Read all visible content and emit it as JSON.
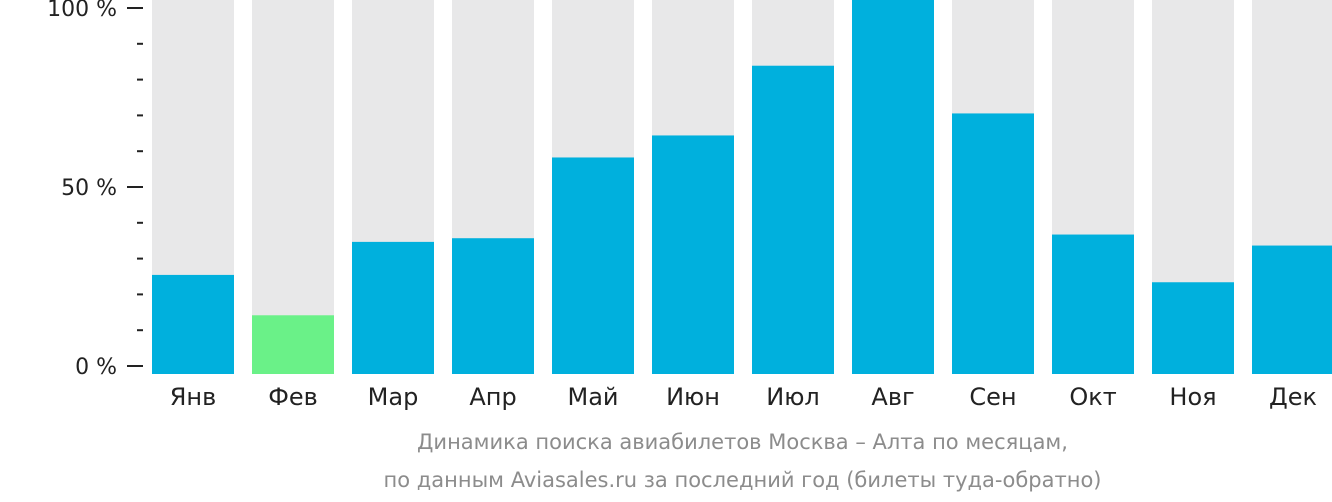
{
  "chart_data": {
    "type": "bar",
    "categories": [
      "Янв",
      "Фев",
      "Мар",
      "Апр",
      "Май",
      "Июн",
      "Июл",
      "Авг",
      "Сен",
      "Окт",
      "Ноя",
      "Дек"
    ],
    "values": [
      27,
      16,
      36,
      37,
      59,
      65,
      84,
      100,
      71,
      38,
      25,
      35
    ],
    "ylim": [
      0,
      100
    ],
    "yticks": [
      "0 %",
      "50 %",
      "100 %"
    ],
    "highlight_index": 1,
    "colors": {
      "bar": "#00b0dd",
      "highlight": "#6af188",
      "track": "#e8e8e9",
      "axis": "#222222"
    },
    "caption": [
      "Динамика поиска авиабилетов Москва – Алта по месяцам,",
      "по данным Aviasales.ru за последний год (билеты туда-обратно)"
    ]
  }
}
